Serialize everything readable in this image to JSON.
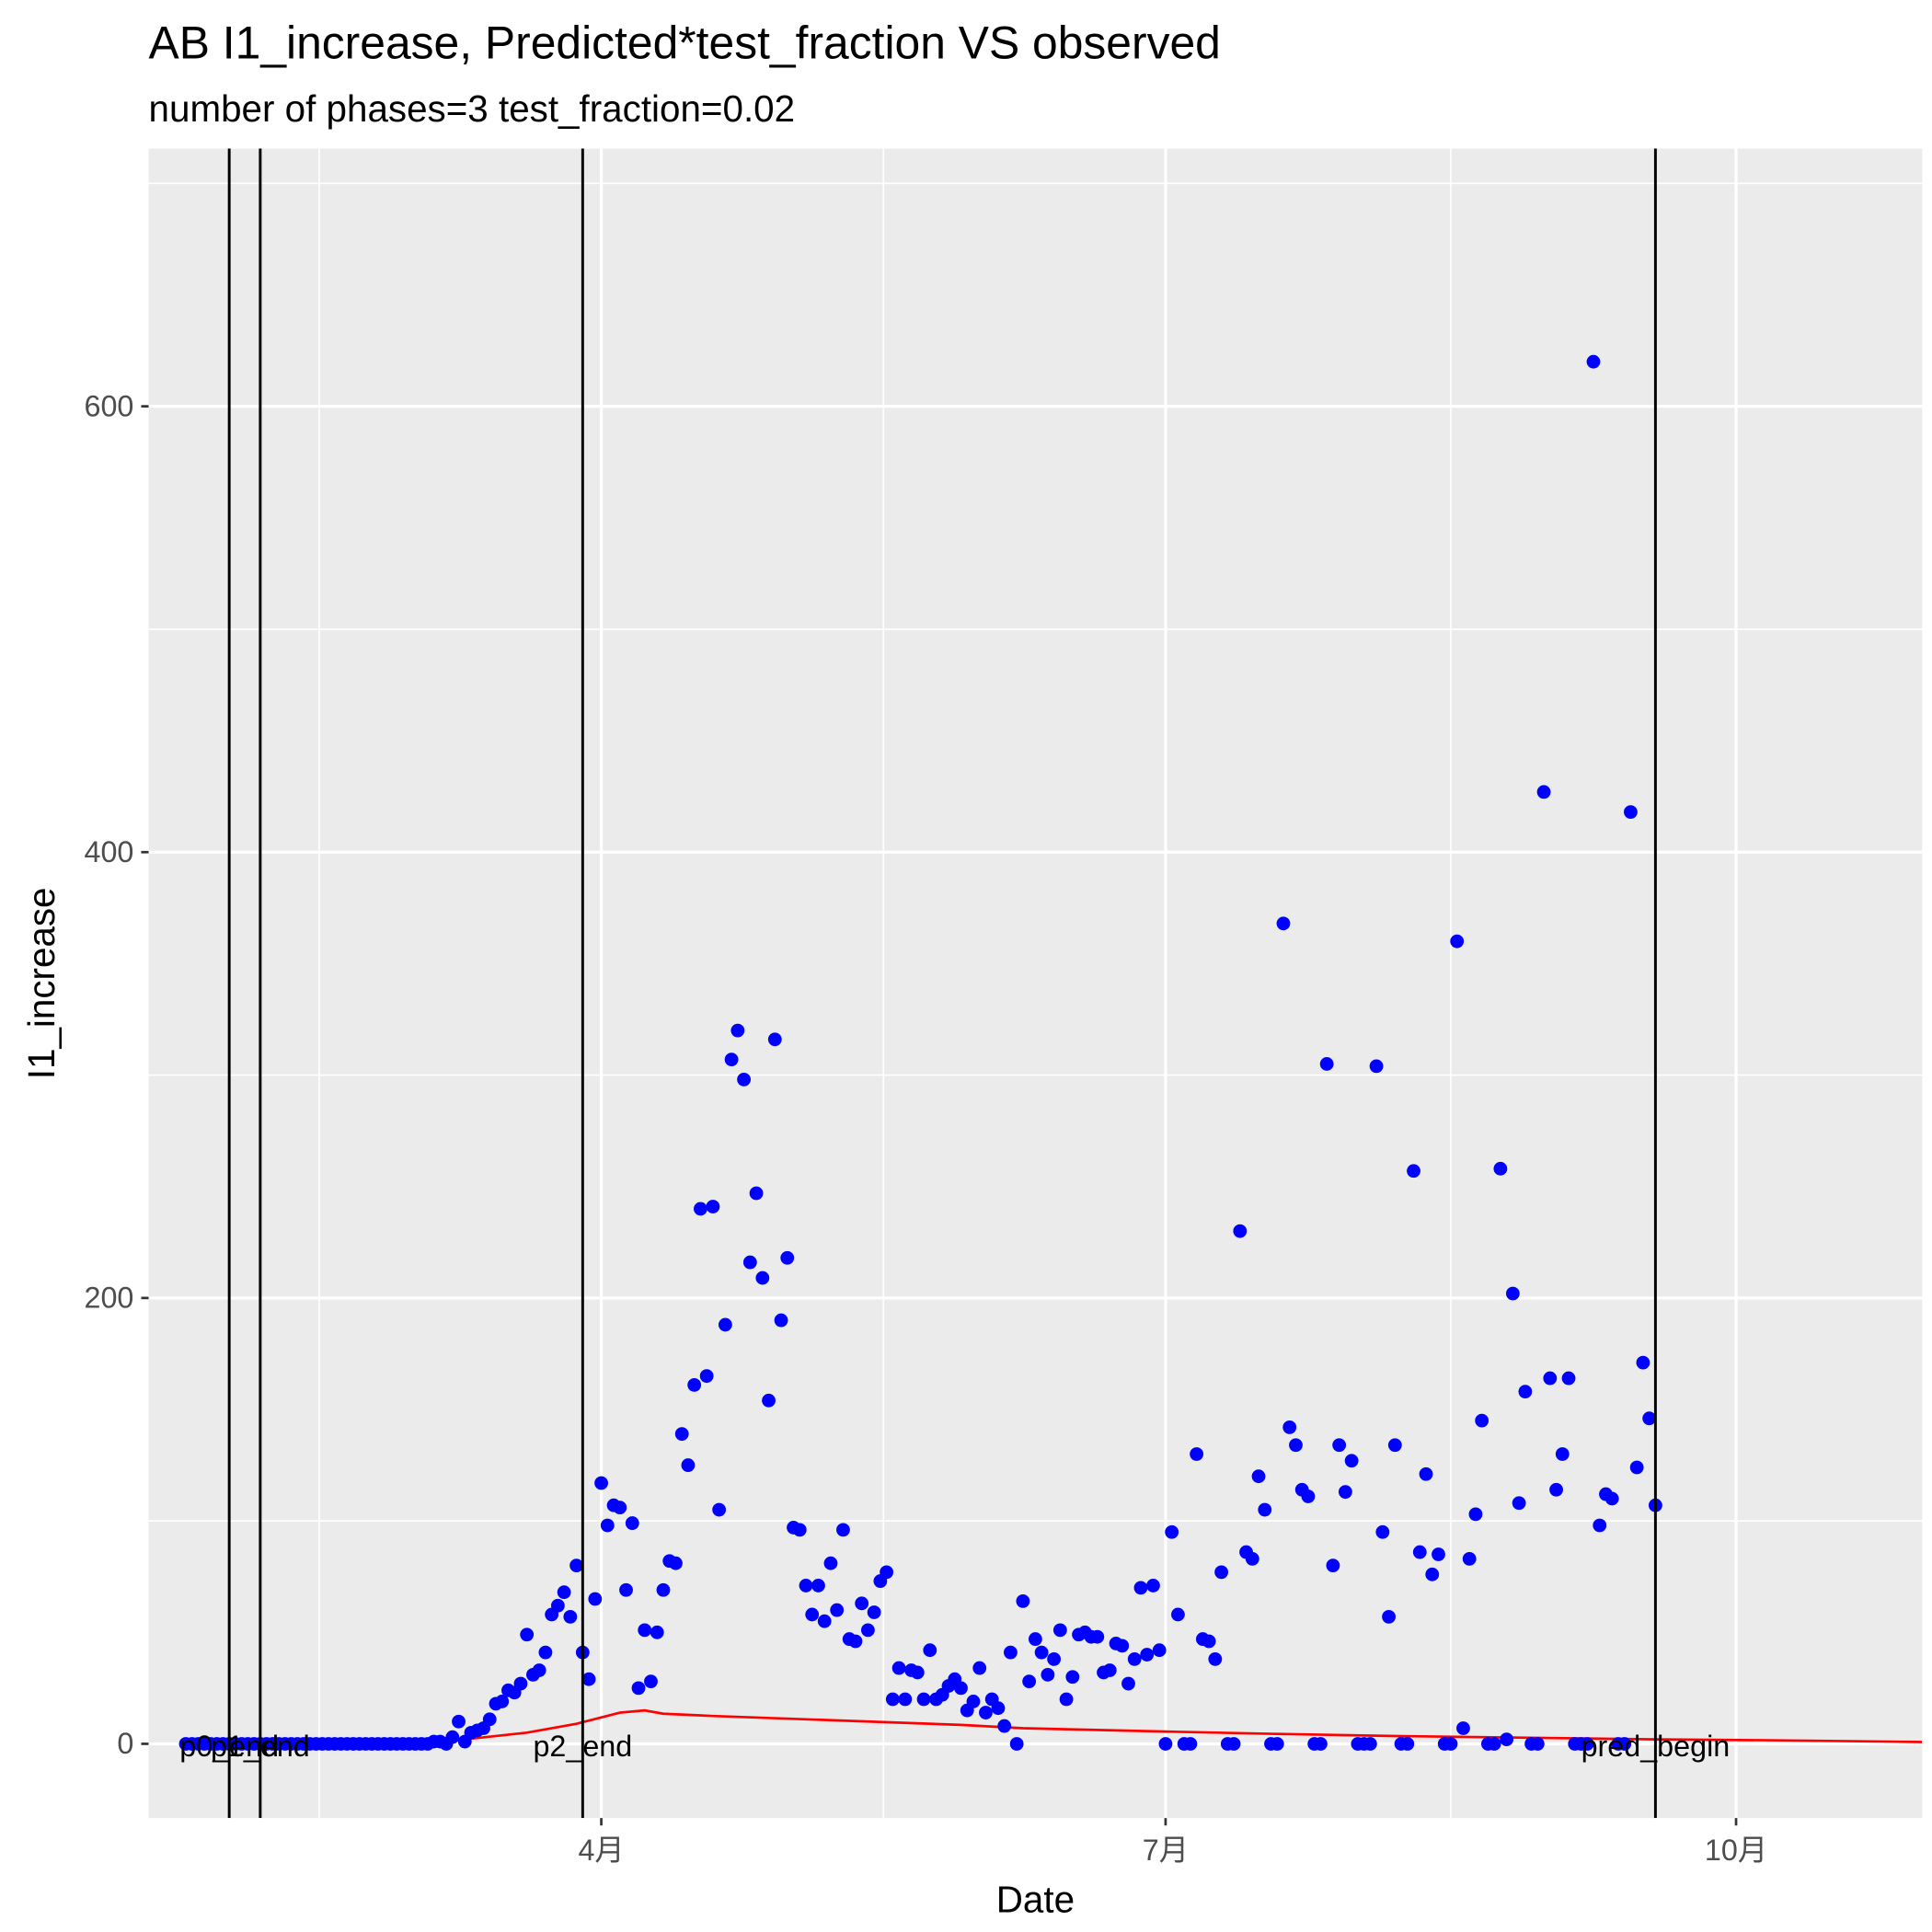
{
  "chart_data": {
    "type": "scatter",
    "title": "AB I1_increase, Predicted*test_fraction VS observed",
    "subtitle": "number of phases=3   test_fraction=0.02",
    "xlabel": "Date",
    "ylabel": "I1_increase",
    "xlim": [
      19,
      305
    ],
    "ylim": [
      -33.3,
      715.6
    ],
    "xticks": [
      {
        "value": 92,
        "label": "4月"
      },
      {
        "value": 183,
        "label": "7月"
      },
      {
        "value": 275,
        "label": "10月"
      }
    ],
    "yticks": [
      0,
      200,
      400,
      600
    ],
    "grid": true,
    "background": "#ebebeb",
    "vlines": [
      {
        "x": 32,
        "label": "p0_end"
      },
      {
        "x": 37,
        "label": "p1_end"
      },
      {
        "x": 89,
        "label": "p2_end"
      },
      {
        "x": 262,
        "label": "pred_begin"
      }
    ],
    "series": [
      {
        "mark": "line",
        "color": "#ff0000",
        "x": [
          25,
          60,
          65,
          70,
          80,
          88,
          95,
          99,
          102,
          110,
          130,
          150,
          160,
          183,
          200,
          220,
          240,
          262,
          280,
          300,
          305
        ],
        "values": [
          0,
          0,
          0.5,
          2,
          5,
          9,
          14,
          15,
          13.5,
          12.5,
          10.5,
          8.5,
          7,
          5.5,
          4.5,
          3.5,
          2.8,
          2,
          1.6,
          1,
          0.8
        ]
      },
      {
        "mark": "point",
        "color": "#0000ff",
        "x": [
          25,
          26,
          27,
          28,
          29,
          30,
          31,
          32,
          33,
          34,
          35,
          36,
          37,
          38,
          39,
          40,
          41,
          42,
          43,
          44,
          45,
          46,
          47,
          48,
          49,
          50,
          51,
          52,
          53,
          54,
          55,
          56,
          57,
          58,
          59,
          60,
          61,
          62,
          63,
          64,
          65,
          66,
          67,
          68,
          69,
          70,
          71,
          72,
          73,
          74,
          75,
          76,
          77,
          78,
          79,
          80,
          81,
          82,
          83,
          84,
          85,
          86,
          87,
          88,
          89,
          90,
          91,
          92,
          93,
          94,
          95,
          96,
          97,
          98,
          99,
          100,
          101,
          102,
          103,
          104,
          105,
          106,
          107,
          108,
          109,
          110,
          111,
          112,
          113,
          114,
          115,
          116,
          117,
          118,
          119,
          120,
          121,
          122,
          123,
          124,
          125,
          126,
          127,
          128,
          129,
          130,
          131,
          132,
          133,
          134,
          135,
          136,
          137,
          138,
          139,
          140,
          141,
          142,
          143,
          144,
          145,
          146,
          147,
          148,
          149,
          150,
          151,
          152,
          153,
          154,
          155,
          156,
          157,
          158,
          159,
          160,
          161,
          162,
          163,
          164,
          165,
          166,
          167,
          168,
          169,
          170,
          171,
          172,
          173,
          174,
          175,
          176,
          177,
          178,
          179,
          180,
          181,
          182,
          183,
          184,
          185,
          186,
          187,
          188,
          189,
          190,
          191,
          192,
          193,
          194,
          195,
          196,
          197,
          198,
          199,
          200,
          201,
          202,
          203,
          204,
          205,
          206,
          207,
          208,
          209,
          210,
          211,
          212,
          213,
          214,
          215,
          216,
          217,
          218,
          219,
          220,
          221,
          222,
          223,
          224,
          225,
          226,
          227,
          228,
          229,
          230,
          231,
          232,
          233,
          234,
          235,
          236,
          237,
          238,
          239,
          240,
          241,
          242,
          243,
          244,
          245,
          246,
          247,
          248,
          249,
          250,
          251,
          252,
          253,
          254,
          255,
          256,
          257,
          258,
          259,
          260,
          261,
          262
        ],
        "values": [
          0,
          0,
          0,
          0,
          0,
          0,
          0,
          0,
          0,
          0,
          0,
          0,
          0,
          0,
          0,
          0,
          0,
          0,
          0,
          0,
          0,
          0,
          0,
          0,
          0,
          0,
          0,
          0,
          0,
          0,
          0,
          0,
          0,
          0,
          0,
          0,
          0,
          0,
          0,
          0,
          1,
          1,
          0,
          3,
          10,
          1,
          5,
          6,
          7,
          11,
          18,
          19,
          24,
          23,
          27,
          49,
          31,
          33,
          41,
          58,
          62,
          68,
          57,
          80,
          41,
          29,
          65,
          117,
          98,
          107,
          106,
          69,
          99,
          25,
          51,
          28,
          50,
          69,
          82,
          81,
          139,
          125,
          161,
          240,
          165,
          241,
          105,
          188,
          307,
          320,
          298,
          216,
          247,
          209,
          154,
          316,
          190,
          218,
          97,
          96,
          71,
          58,
          71,
          55,
          81,
          60,
          96,
          47,
          46,
          63,
          51,
          59,
          73,
          77,
          20,
          34,
          20,
          33,
          32,
          20,
          42,
          20,
          22,
          26,
          29,
          25,
          15,
          19,
          34,
          14,
          20,
          16,
          8,
          41,
          0,
          64,
          28,
          47,
          41,
          31,
          38,
          51,
          20,
          30,
          49,
          50,
          48,
          48,
          32,
          33,
          45,
          44,
          27,
          38,
          70,
          40,
          71,
          42,
          0,
          95,
          58,
          0,
          0,
          130,
          47,
          46,
          38,
          77,
          0,
          0,
          230,
          86,
          83,
          120,
          105,
          0,
          0,
          368,
          142,
          134,
          114,
          111,
          0,
          0,
          305,
          80,
          134,
          113,
          127,
          0,
          0,
          0,
          304,
          95,
          57,
          134,
          0,
          0,
          257,
          86,
          121,
          76,
          85,
          0,
          0,
          360,
          7,
          83,
          103,
          145,
          0,
          0,
          258,
          2,
          202,
          108,
          158,
          0,
          0,
          427,
          164,
          114,
          130,
          164,
          0,
          0,
          0,
          620,
          98,
          112,
          110,
          0,
          0,
          418,
          124,
          171,
          146,
          107
        ]
      }
    ]
  }
}
